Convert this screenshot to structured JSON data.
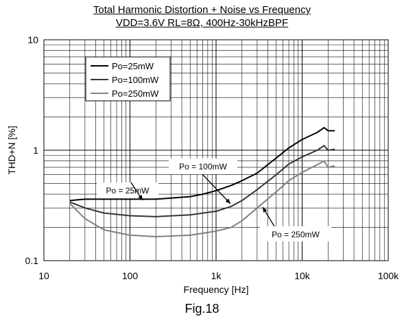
{
  "chart_data": {
    "type": "line",
    "title": "Total Harmonic Distortion + Noise vs Frequency",
    "subtitle": "VDD=3.6V RL=8Ω, 400Hz-30kHzBPF",
    "xlabel": "Frequency [Hz]",
    "ylabel": "THD+N [%]",
    "x_scale": "log",
    "y_scale": "log",
    "xlim": [
      10,
      100000
    ],
    "ylim": [
      0.1,
      10
    ],
    "x_ticks": [
      "10",
      "100",
      "1k",
      "10k",
      "100k"
    ],
    "y_ticks": [
      "10",
      "1",
      "0.1"
    ],
    "grid": true,
    "legend_position": "top-left",
    "series": [
      {
        "name": "Po=25mW",
        "color": "#000000",
        "x": [
          20,
          30,
          50,
          100,
          200,
          500,
          700,
          1000,
          1500,
          2000,
          3000,
          5000,
          7000,
          10000,
          15000,
          18000,
          20000,
          24000
        ],
        "y": [
          0.35,
          0.36,
          0.36,
          0.36,
          0.36,
          0.38,
          0.4,
          0.43,
          0.48,
          0.53,
          0.62,
          0.85,
          1.05,
          1.25,
          1.45,
          1.6,
          1.5,
          1.5
        ]
      },
      {
        "name": "Po=100mW",
        "color": "#333333",
        "x": [
          20,
          30,
          50,
          100,
          200,
          500,
          1000,
          1500,
          2000,
          3000,
          5000,
          7000,
          10000,
          15000,
          18000,
          20000,
          24000
        ],
        "y": [
          0.34,
          0.3,
          0.27,
          0.255,
          0.25,
          0.26,
          0.28,
          0.31,
          0.35,
          0.44,
          0.6,
          0.75,
          0.87,
          1.0,
          1.1,
          1.0,
          1.02
        ]
      },
      {
        "name": "Po=250mW",
        "color": "#808080",
        "x": [
          20,
          30,
          50,
          100,
          200,
          500,
          1000,
          1500,
          2000,
          3000,
          5000,
          7000,
          10000,
          15000,
          18000,
          20000,
          24000
        ],
        "y": [
          0.33,
          0.24,
          0.19,
          0.17,
          0.165,
          0.17,
          0.185,
          0.2,
          0.23,
          0.3,
          0.42,
          0.53,
          0.63,
          0.74,
          0.8,
          0.7,
          0.72
        ]
      }
    ],
    "annotations": [
      {
        "text": "Po = 25mW",
        "series": "Po=25mW"
      },
      {
        "text": "Po = 100mW",
        "series": "Po=100mW"
      },
      {
        "text": "Po = 250mW",
        "series": "Po=250mW"
      }
    ]
  },
  "figure_caption": "Fig.18"
}
